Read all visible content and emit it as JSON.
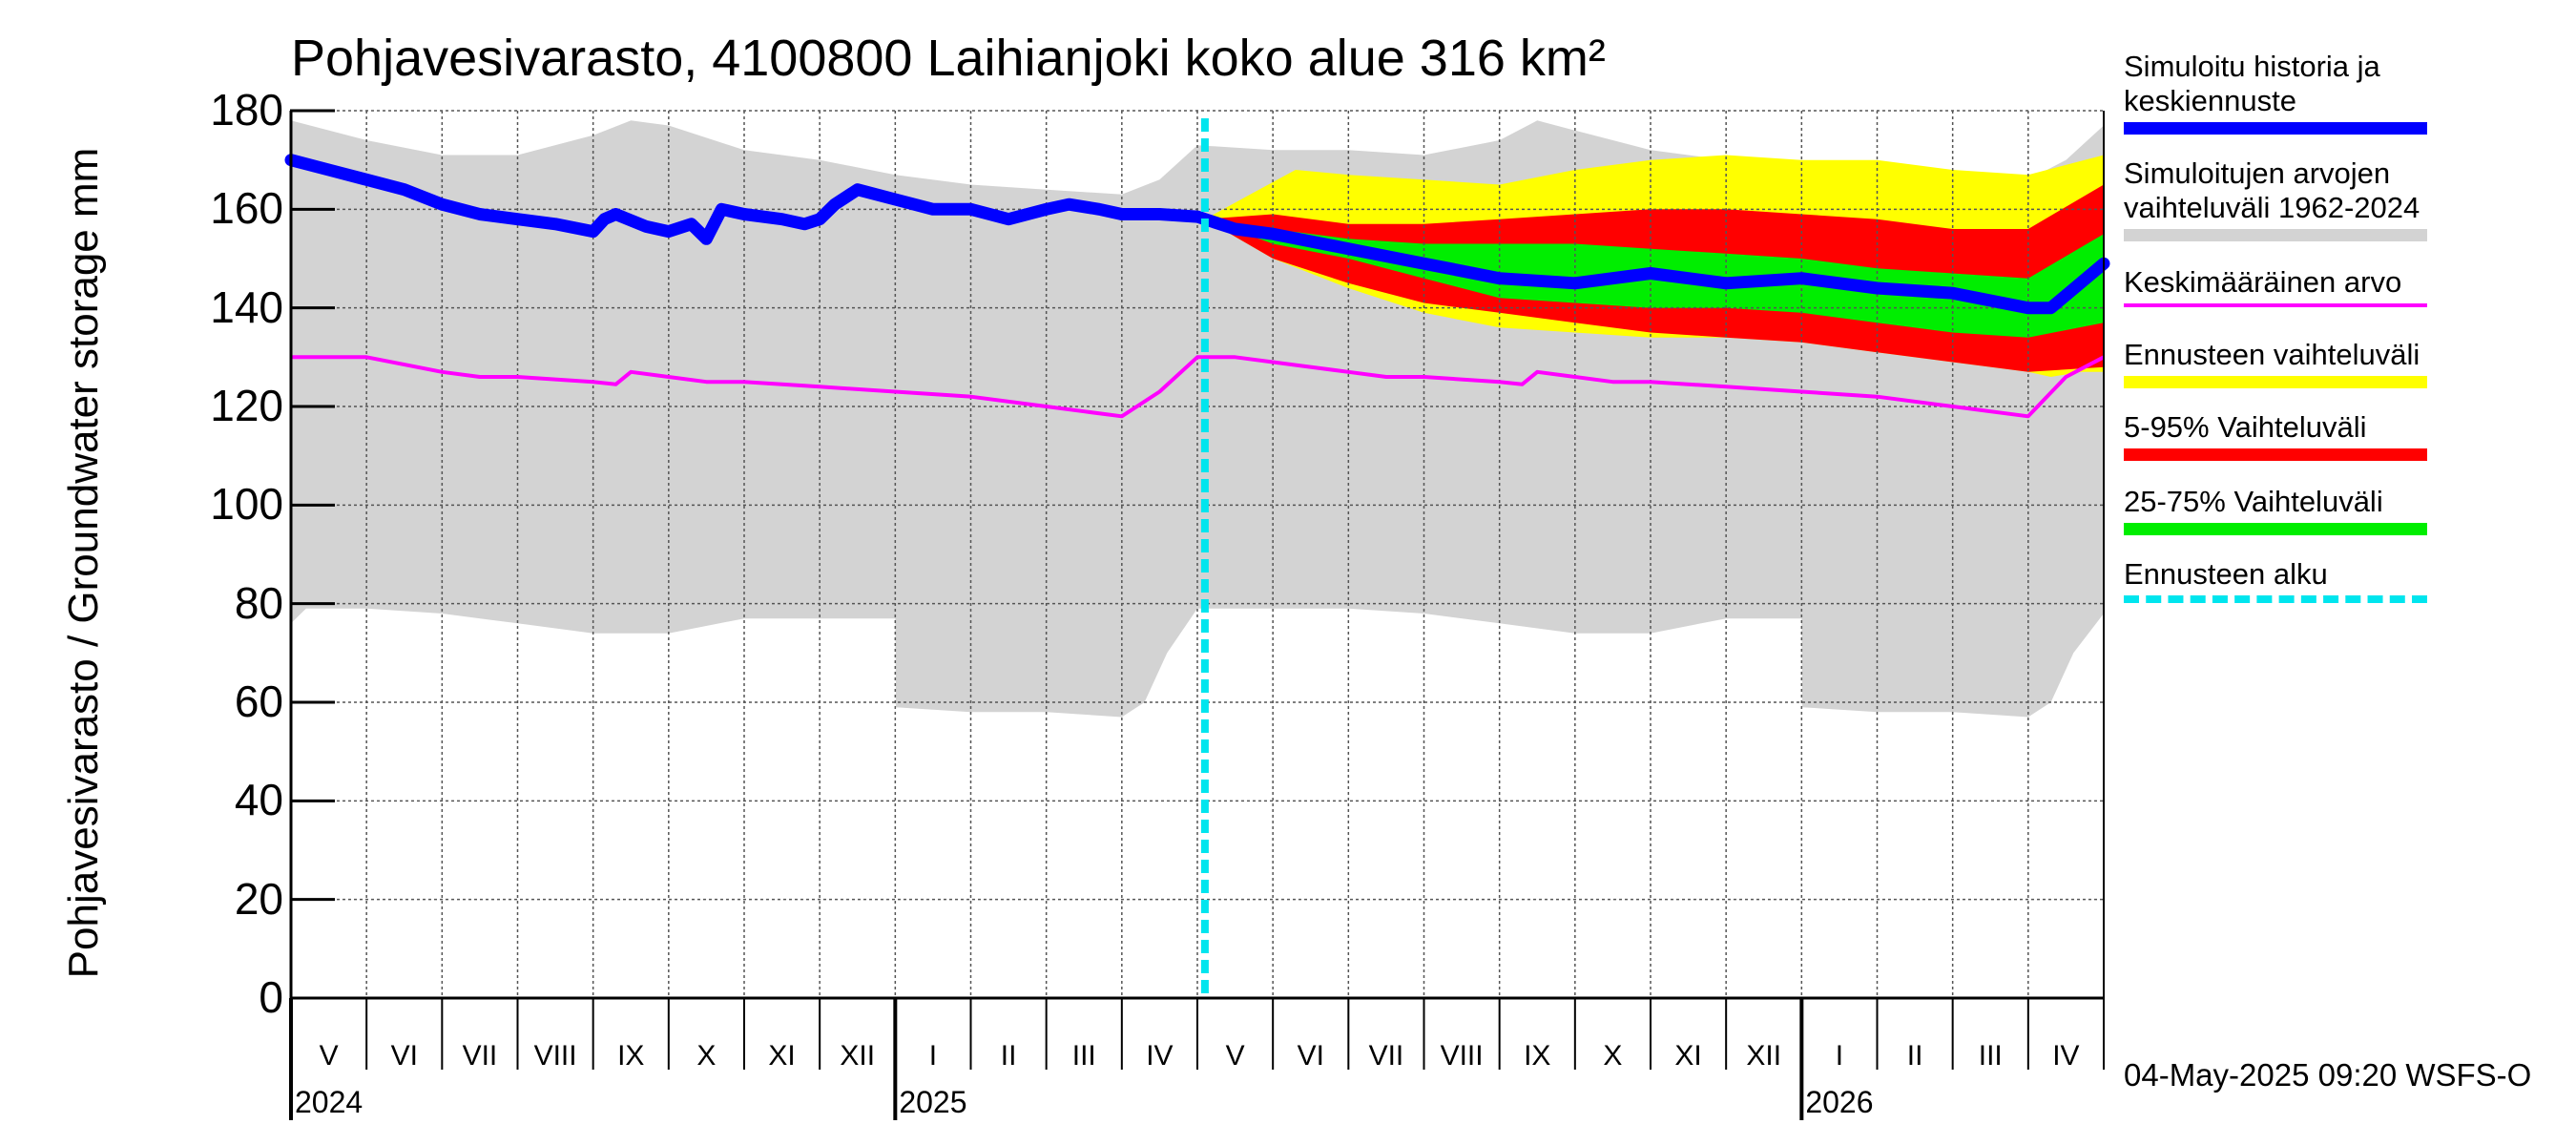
{
  "title": "Pohjavesivarasto, 4100800 Laihianjoki koko alue 316 km²",
  "ylabel": "Pohjavesivarasto / Groundwater storage   mm",
  "footer": "04-May-2025 09:20 WSFS-O",
  "colors": {
    "history_band": "#d3d3d3",
    "forecast_range": "#ffff00",
    "p5_95": "#ff0000",
    "p25_75": "#00ee00",
    "mean": "#ff00ff",
    "simulated": "#0000ff",
    "forecast_start": "#00e5ee"
  },
  "legend": [
    {
      "label": "Simuloitu historia ja\nkeskiennuste",
      "color": "#0000ff",
      "style": "solid"
    },
    {
      "label": "Simuloitujen arvojen\nvaihteluväli 1962-2024",
      "color": "#d3d3d3",
      "style": "solid"
    },
    {
      "label": "Keskimääräinen arvo",
      "color": "#ff00ff",
      "style": "thin"
    },
    {
      "label": "Ennusteen vaihteluväli",
      "color": "#ffff00",
      "style": "solid"
    },
    {
      "label": "5-95% Vaihteluväli",
      "color": "#ff0000",
      "style": "solid"
    },
    {
      "label": "25-75% Vaihteluväli",
      "color": "#00ee00",
      "style": "solid"
    },
    {
      "label": "Ennusteen alku",
      "color": "#00e5ee",
      "style": "dashed"
    }
  ],
  "chart_data": {
    "type": "line",
    "title": "Pohjavesivarasto, 4100800 Laihianjoki koko alue 316 km²",
    "ylabel": "Pohjavesivarasto / Groundwater storage   mm",
    "ylim": [
      0,
      180
    ],
    "yticks": [
      0,
      20,
      40,
      60,
      80,
      100,
      120,
      140,
      160,
      180
    ],
    "x_unit": "month index (0 = 1 May 2024)",
    "xlim": [
      0,
      24
    ],
    "forecast_start": 12.1,
    "months": [
      "V",
      "VI",
      "VII",
      "VIII",
      "IX",
      "X",
      "XI",
      "XII",
      "I",
      "II",
      "III",
      "IV",
      "V",
      "VI",
      "VII",
      "VIII",
      "IX",
      "X",
      "XI",
      "XII",
      "I",
      "II",
      "III",
      "IV"
    ],
    "years": [
      {
        "label": "2024",
        "x": 0
      },
      {
        "label": "2025",
        "x": 8
      },
      {
        "label": "2026",
        "x": 20
      }
    ],
    "series": [
      {
        "name": "Simuloitujen arvojen vaihteluväli 1962-2024 (max)",
        "x": [
          0,
          1,
          2,
          3,
          4,
          4.5,
          5,
          6,
          7,
          8,
          9,
          10,
          11,
          11.5,
          12,
          13,
          14,
          15,
          16,
          16.5,
          17,
          18,
          19,
          20,
          21,
          22,
          23,
          23.5,
          24
        ],
        "values": [
          178,
          174,
          171,
          171,
          175,
          178,
          177,
          172,
          170,
          167,
          165,
          164,
          163,
          166,
          173,
          172,
          172,
          171,
          174,
          178,
          176,
          172,
          170,
          168,
          166,
          166,
          166,
          170,
          177
        ]
      },
      {
        "name": "Simuloitujen arvojen vaihteluväli 1962-2024 (min)",
        "x": [
          0,
          0.2,
          1,
          2,
          3,
          4,
          5,
          6,
          7,
          8,
          8.01,
          9,
          10,
          11,
          11.3,
          11.6,
          12,
          13,
          14,
          15,
          16,
          17,
          18,
          19,
          20,
          20.01,
          21,
          22,
          23,
          23.3,
          23.6,
          24
        ],
        "values": [
          76,
          79,
          79,
          78,
          76,
          74,
          74,
          77,
          77,
          77,
          59,
          58,
          58,
          57,
          60,
          70,
          79,
          79,
          79,
          78,
          76,
          74,
          74,
          77,
          77,
          59,
          58,
          58,
          57,
          60,
          70,
          78
        ]
      },
      {
        "name": "Ennusteen vaihteluväli (max)",
        "x": [
          12.1,
          12.7,
          13.3,
          14,
          15,
          16,
          17,
          18,
          19,
          20,
          21,
          22,
          23,
          24
        ],
        "values": [
          158,
          163,
          168,
          167,
          166,
          165,
          168,
          170,
          171,
          170,
          170,
          168,
          167,
          171
        ]
      },
      {
        "name": "Ennusteen vaihteluväli (min)",
        "x": [
          12.1,
          13,
          14,
          15,
          16,
          17,
          18,
          19,
          20,
          21,
          22,
          23,
          23.3,
          23.7,
          24
        ],
        "values": [
          158,
          150,
          144,
          139,
          136,
          135,
          134,
          134,
          133,
          131,
          129,
          127,
          126,
          127,
          127
        ]
      },
      {
        "name": "5-95% (max)",
        "x": [
          12.1,
          13,
          14,
          15,
          16,
          17,
          18,
          19,
          20,
          21,
          22,
          23,
          24
        ],
        "values": [
          158,
          159,
          157,
          157,
          158,
          159,
          160,
          160,
          159,
          158,
          156,
          156,
          165
        ]
      },
      {
        "name": "5-95% (min)",
        "x": [
          12.1,
          13,
          14,
          15,
          16,
          17,
          18,
          19,
          20,
          21,
          22,
          23,
          24
        ],
        "values": [
          158,
          150,
          145,
          141,
          139,
          137,
          135,
          134,
          133,
          131,
          129,
          127,
          128
        ]
      },
      {
        "name": "25-75% (max)",
        "x": [
          12.1,
          13,
          14,
          15,
          16,
          17,
          18,
          19,
          20,
          21,
          22,
          23,
          24
        ],
        "values": [
          158,
          156,
          154,
          153,
          153,
          153,
          152,
          151,
          150,
          148,
          147,
          146,
          155
        ]
      },
      {
        "name": "25-75% (min)",
        "x": [
          12.1,
          13,
          14,
          15,
          16,
          17,
          18,
          19,
          20,
          21,
          22,
          23,
          24
        ],
        "values": [
          158,
          153,
          150,
          146,
          142,
          141,
          140,
          140,
          139,
          137,
          135,
          134,
          137
        ]
      },
      {
        "name": "Simuloitu historia ja keskiennuste",
        "x": [
          0,
          0.5,
          1,
          1.5,
          2,
          2.5,
          3,
          3.5,
          4,
          4.15,
          4.3,
          4.7,
          5,
          5.3,
          5.5,
          5.7,
          6,
          6.5,
          6.8,
          7,
          7.2,
          7.5,
          8,
          8.5,
          9,
          9.5,
          10,
          10.3,
          10.7,
          11,
          11.5,
          12,
          12.5,
          13,
          14,
          15,
          16,
          17,
          18,
          19,
          20,
          21,
          22,
          23,
          23.3,
          24
        ],
        "values": [
          170,
          168,
          166,
          164,
          161,
          159,
          158,
          157,
          155.5,
          158,
          159,
          156.5,
          155.5,
          157,
          154,
          160,
          159,
          158,
          157,
          158,
          161,
          164,
          162,
          160,
          160,
          158,
          160,
          161,
          160,
          159,
          159,
          158.5,
          156,
          155,
          152,
          149,
          146,
          145,
          147,
          145,
          146,
          144,
          143,
          140,
          140,
          149
        ]
      },
      {
        "name": "Keskimääräinen arvo",
        "x": [
          0,
          0.5,
          1,
          2,
          2.5,
          3,
          4,
          4.3,
          4.5,
          5,
          5.5,
          6,
          7,
          8,
          9,
          10,
          10.5,
          11,
          11.5,
          12,
          12.5,
          13,
          14,
          14.5,
          15,
          16,
          16.3,
          16.5,
          17,
          17.5,
          18,
          19,
          20,
          21,
          22,
          23,
          23.5,
          24
        ],
        "values": [
          130,
          130,
          130,
          127,
          126,
          126,
          125,
          124.5,
          127,
          126,
          125,
          125,
          124,
          123,
          122,
          120,
          119,
          118,
          123,
          130,
          130,
          129,
          127,
          126,
          126,
          125,
          124.5,
          127,
          126,
          125,
          125,
          124,
          123,
          122,
          120,
          118,
          126,
          130
        ]
      }
    ]
  }
}
